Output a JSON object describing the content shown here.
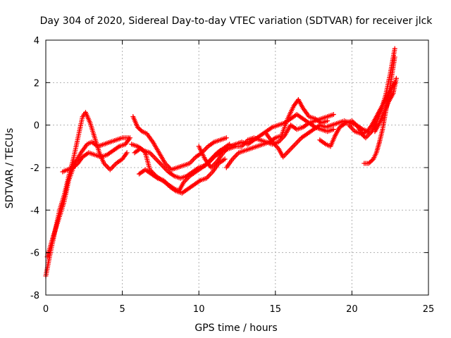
{
  "chart_data": {
    "type": "scatter",
    "title": "Day 304 of 2020, Sidereal Day-to-day VTEC variation (SDTVAR) for receiver jlck",
    "xlabel": "GPS time / hours",
    "ylabel": "SDTVAR / TECUs",
    "xlim": [
      0,
      25
    ],
    "ylim": [
      -8,
      4
    ],
    "xticks": [
      0,
      5,
      10,
      15,
      20,
      25
    ],
    "yticks": [
      -8,
      -6,
      -4,
      -2,
      0,
      2,
      4
    ],
    "grid": true,
    "marker": "plus",
    "color": "#ff0000",
    "series": [
      {
        "name": "",
        "points": [
          [
            0.0,
            -7.1
          ],
          [
            0.3,
            -6.0
          ],
          [
            0.6,
            -5.0
          ],
          [
            0.9,
            -4.0
          ],
          [
            1.2,
            -3.3
          ],
          [
            1.5,
            -2.4
          ],
          [
            1.8,
            -1.6
          ],
          [
            2.1,
            -0.6
          ],
          [
            2.4,
            0.4
          ],
          [
            2.6,
            0.6
          ],
          [
            2.9,
            0.1
          ],
          [
            3.2,
            -0.6
          ],
          [
            3.5,
            -1.3
          ],
          [
            3.8,
            -1.8
          ],
          [
            4.2,
            -2.1
          ],
          [
            4.6,
            -1.8
          ],
          [
            5.0,
            -1.6
          ],
          [
            5.3,
            -1.3
          ]
        ]
      },
      {
        "name": "",
        "points": [
          [
            0.1,
            -6.2
          ],
          [
            0.5,
            -5.2
          ],
          [
            0.9,
            -4.3
          ],
          [
            1.2,
            -3.6
          ],
          [
            1.5,
            -2.6
          ],
          [
            1.9,
            -1.8
          ],
          [
            2.3,
            -1.3
          ],
          [
            2.7,
            -0.9
          ],
          [
            3.0,
            -0.8
          ],
          [
            3.4,
            -1.0
          ],
          [
            3.8,
            -0.9
          ],
          [
            4.2,
            -0.8
          ],
          [
            4.6,
            -0.7
          ],
          [
            5.0,
            -0.6
          ],
          [
            5.4,
            -0.6
          ]
        ]
      },
      {
        "name": "",
        "points": [
          [
            1.1,
            -2.2
          ],
          [
            1.4,
            -2.1
          ],
          [
            1.8,
            -2.0
          ],
          [
            2.1,
            -1.8
          ],
          [
            2.4,
            -1.5
          ],
          [
            2.8,
            -1.3
          ],
          [
            3.2,
            -1.4
          ],
          [
            3.6,
            -1.5
          ],
          [
            4.0,
            -1.4
          ],
          [
            4.4,
            -1.2
          ],
          [
            4.8,
            -1.0
          ],
          [
            5.2,
            -0.9
          ],
          [
            5.5,
            -0.6
          ]
        ]
      },
      {
        "name": "",
        "points": [
          [
            5.7,
            0.4
          ],
          [
            6.0,
            -0.1
          ],
          [
            6.3,
            -0.3
          ],
          [
            6.6,
            -0.4
          ],
          [
            7.0,
            -0.8
          ],
          [
            7.4,
            -1.3
          ],
          [
            7.8,
            -1.8
          ],
          [
            8.2,
            -2.1
          ],
          [
            8.6,
            -2.0
          ],
          [
            9.0,
            -1.9
          ],
          [
            9.4,
            -1.8
          ],
          [
            9.8,
            -1.5
          ],
          [
            10.2,
            -1.3
          ],
          [
            10.6,
            -1.0
          ],
          [
            11.0,
            -0.8
          ],
          [
            11.4,
            -0.7
          ],
          [
            11.8,
            -0.6
          ]
        ]
      },
      {
        "name": "",
        "points": [
          [
            5.6,
            -0.9
          ],
          [
            6.0,
            -1.0
          ],
          [
            6.4,
            -1.2
          ],
          [
            6.8,
            -1.3
          ],
          [
            7.2,
            -1.6
          ],
          [
            7.6,
            -1.9
          ],
          [
            8.0,
            -2.2
          ],
          [
            8.4,
            -2.4
          ],
          [
            8.8,
            -2.5
          ],
          [
            9.2,
            -2.4
          ],
          [
            9.6,
            -2.2
          ],
          [
            10.0,
            -2.0
          ],
          [
            10.4,
            -1.9
          ],
          [
            10.8,
            -1.6
          ],
          [
            11.2,
            -1.3
          ],
          [
            11.6,
            -1.1
          ],
          [
            12.0,
            -0.9
          ]
        ]
      },
      {
        "name": "",
        "points": [
          [
            5.8,
            -1.3
          ],
          [
            6.2,
            -1.1
          ],
          [
            6.5,
            -1.3
          ],
          [
            6.8,
            -2.1
          ],
          [
            7.2,
            -2.4
          ],
          [
            7.6,
            -2.6
          ],
          [
            8.0,
            -2.8
          ],
          [
            8.4,
            -3.0
          ],
          [
            8.7,
            -3.1
          ],
          [
            9.0,
            -2.7
          ],
          [
            9.4,
            -2.4
          ],
          [
            9.8,
            -2.2
          ],
          [
            10.2,
            -2.0
          ],
          [
            10.6,
            -1.8
          ],
          [
            11.0,
            -1.5
          ],
          [
            11.4,
            -1.2
          ]
        ]
      },
      {
        "name": "",
        "points": [
          [
            6.1,
            -2.3
          ],
          [
            6.5,
            -2.1
          ],
          [
            6.9,
            -2.3
          ],
          [
            7.3,
            -2.5
          ],
          [
            7.7,
            -2.6
          ],
          [
            8.1,
            -2.9
          ],
          [
            8.5,
            -3.1
          ],
          [
            8.9,
            -3.2
          ],
          [
            9.3,
            -3.0
          ],
          [
            9.7,
            -2.8
          ],
          [
            10.1,
            -2.6
          ],
          [
            10.5,
            -2.5
          ],
          [
            10.9,
            -2.2
          ],
          [
            11.3,
            -1.8
          ],
          [
            11.7,
            -1.6
          ]
        ]
      },
      {
        "name": "",
        "points": [
          [
            10.0,
            -1.0
          ],
          [
            10.4,
            -1.6
          ],
          [
            10.8,
            -2.0
          ],
          [
            11.2,
            -1.7
          ],
          [
            11.6,
            -1.3
          ],
          [
            12.0,
            -1.0
          ],
          [
            12.4,
            -0.9
          ],
          [
            12.8,
            -0.8
          ],
          [
            13.2,
            -0.9
          ],
          [
            13.6,
            -0.7
          ],
          [
            14.0,
            -0.5
          ],
          [
            14.4,
            -0.3
          ],
          [
            14.8,
            -0.1
          ],
          [
            15.2,
            0.0
          ],
          [
            15.6,
            0.1
          ],
          [
            16.0,
            0.3
          ],
          [
            16.4,
            0.5
          ],
          [
            16.8,
            0.3
          ],
          [
            17.2,
            0.1
          ],
          [
            17.6,
            0.2
          ],
          [
            18.0,
            0.3
          ],
          [
            18.4,
            0.4
          ],
          [
            18.8,
            0.5
          ]
        ]
      },
      {
        "name": "",
        "points": [
          [
            11.2,
            -1.4
          ],
          [
            11.6,
            -1.2
          ],
          [
            12.0,
            -1.1
          ],
          [
            12.4,
            -1.0
          ],
          [
            12.8,
            -1.0
          ],
          [
            13.2,
            -0.7
          ],
          [
            13.6,
            -0.6
          ],
          [
            14.0,
            -0.7
          ],
          [
            14.4,
            -0.8
          ],
          [
            14.8,
            -0.9
          ],
          [
            15.2,
            -0.8
          ],
          [
            15.6,
            -0.5
          ],
          [
            16.0,
            0.0
          ],
          [
            16.4,
            -0.2
          ],
          [
            16.8,
            -0.1
          ],
          [
            17.2,
            0.1
          ],
          [
            17.6,
            -0.1
          ],
          [
            18.0,
            -0.2
          ],
          [
            18.4,
            -0.3
          ],
          [
            18.8,
            -0.2
          ]
        ]
      },
      {
        "name": "",
        "points": [
          [
            11.8,
            -2.0
          ],
          [
            12.2,
            -1.6
          ],
          [
            12.6,
            -1.3
          ],
          [
            13.0,
            -1.2
          ],
          [
            13.4,
            -1.1
          ],
          [
            13.8,
            -1.0
          ],
          [
            14.2,
            -0.9
          ],
          [
            14.6,
            -0.8
          ],
          [
            15.0,
            -0.6
          ],
          [
            15.4,
            -0.5
          ],
          [
            15.8,
            0.3
          ],
          [
            16.2,
            0.9
          ],
          [
            16.5,
            1.2
          ],
          [
            16.8,
            0.8
          ],
          [
            17.2,
            0.4
          ],
          [
            17.6,
            0.3
          ],
          [
            18.0,
            0.1
          ],
          [
            18.4,
            0.2
          ]
        ]
      },
      {
        "name": "",
        "points": [
          [
            14.4,
            -0.4
          ],
          [
            14.8,
            -0.8
          ],
          [
            15.2,
            -1.1
          ],
          [
            15.5,
            -1.5
          ],
          [
            15.9,
            -1.2
          ],
          [
            16.3,
            -0.9
          ],
          [
            16.7,
            -0.6
          ],
          [
            17.1,
            -0.4
          ],
          [
            17.5,
            -0.2
          ],
          [
            17.9,
            0.0
          ],
          [
            18.3,
            -0.1
          ],
          [
            18.7,
            0.0
          ],
          [
            19.1,
            0.1
          ],
          [
            19.5,
            0.2
          ],
          [
            19.9,
            0.1
          ],
          [
            20.3,
            0.0
          ],
          [
            20.7,
            -0.2
          ],
          [
            21.1,
            -0.3
          ]
        ]
      },
      {
        "name": "",
        "points": [
          [
            17.9,
            -0.7
          ],
          [
            18.3,
            -0.9
          ],
          [
            18.6,
            -1.0
          ],
          [
            18.9,
            -0.5
          ],
          [
            19.2,
            -0.1
          ],
          [
            19.6,
            0.1
          ],
          [
            20.0,
            0.2
          ],
          [
            20.3,
            0.0
          ],
          [
            20.7,
            -0.4
          ],
          [
            21.0,
            -0.3
          ],
          [
            21.3,
            0.0
          ],
          [
            21.6,
            0.4
          ],
          [
            21.9,
            0.8
          ],
          [
            22.2,
            1.2
          ],
          [
            22.5,
            1.6
          ],
          [
            22.8,
            2.0
          ]
        ]
      },
      {
        "name": "",
        "points": [
          [
            19.8,
            0.0
          ],
          [
            20.2,
            -0.3
          ],
          [
            20.6,
            -0.4
          ],
          [
            20.9,
            -0.6
          ],
          [
            21.3,
            -0.3
          ],
          [
            21.6,
            0.1
          ],
          [
            21.9,
            0.7
          ],
          [
            22.2,
            1.4
          ],
          [
            22.5,
            2.4
          ],
          [
            22.8,
            3.6
          ]
        ]
      },
      {
        "name": "",
        "points": [
          [
            21.5,
            -0.3
          ],
          [
            21.8,
            0.1
          ],
          [
            22.1,
            0.6
          ],
          [
            22.4,
            1.1
          ],
          [
            22.7,
            1.5
          ],
          [
            22.9,
            2.2
          ]
        ]
      },
      {
        "name": "",
        "points": [
          [
            20.8,
            -1.8
          ],
          [
            21.1,
            -1.8
          ],
          [
            21.4,
            -1.6
          ],
          [
            21.6,
            -1.3
          ],
          [
            21.8,
            -0.8
          ],
          [
            22.0,
            -0.2
          ],
          [
            22.2,
            0.6
          ],
          [
            22.4,
            1.4
          ],
          [
            22.6,
            2.3
          ],
          [
            22.8,
            3.2
          ]
        ]
      }
    ]
  }
}
